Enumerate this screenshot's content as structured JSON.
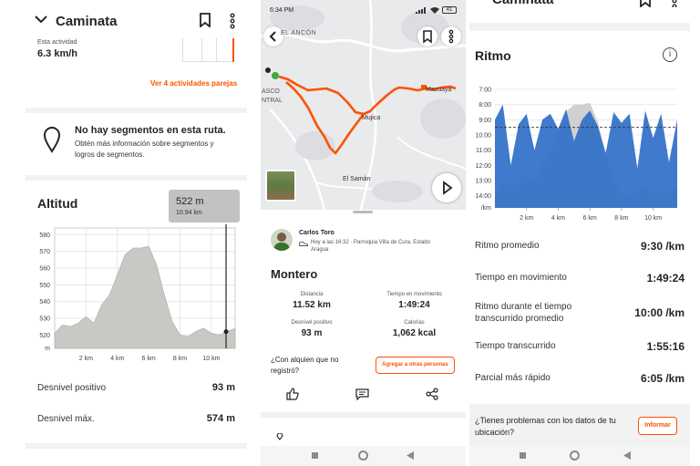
{
  "p1": {
    "title": "Caminata",
    "speed_label": "Esta actividad",
    "speed_value": "6.3 km/h",
    "similar_link": "Ver 4 actividades parejas",
    "segments_title": "No hay segmentos en esta ruta.",
    "segments_desc_1": "Obtén más información sobre segmentos y",
    "segments_desc_2": "logros de segmentos.",
    "altitude_title": "Altitud",
    "tooltip_value": "522 m",
    "tooltip_sub": "10.94 km",
    "y_ticks": [
      "580",
      "570",
      "560",
      "550",
      "540",
      "530",
      "520",
      "m"
    ],
    "x_ticks": [
      "2 km",
      "4 km",
      "6 km",
      "8 km",
      "10 km"
    ],
    "gain_label": "Desnivel positivo",
    "gain_value": "93 m",
    "max_label": "Desnivel máx.",
    "max_value": "574 m"
  },
  "p2": {
    "status_time": "6:34 PM",
    "battery": "41",
    "map_labels": {
      "ancon": "EL ANCÓN",
      "asco": "ASCO",
      "ntral": "NTRAL",
      "mujica": "Mujica",
      "macuaya": "Macuaya",
      "saman": "El Samán"
    },
    "athlete_name": "Carlos Toro",
    "athlete_meta_1": "Hoy a las 16:32 · Parroquia Villa de Cura, Estado",
    "athlete_meta_2": "Aragua",
    "activity_title": "Montero",
    "stats": [
      {
        "label": "Distancia",
        "value": "11.52 km"
      },
      {
        "label": "Tiempo en movimiento",
        "value": "1:49:24"
      },
      {
        "label": "Desnivel positivo",
        "value": "93 m"
      },
      {
        "label": "Calorías",
        "value": "1,062 kcal"
      }
    ],
    "companion_q_1": "¿Con alquien que no",
    "companion_q_2": "registró?",
    "add_button": "Agregar a otras personas"
  },
  "p3": {
    "title": "Caminata",
    "pace_title": "Ritmo",
    "y_ticks": [
      "7:00",
      "8:00",
      "9:00",
      "10:00",
      "11:00",
      "12:00",
      "13:00",
      "14:00",
      "/km"
    ],
    "x_ticks": [
      "2 km",
      "4 km",
      "6 km",
      "8 km",
      "10 km"
    ],
    "rows": [
      {
        "label": "Ritmo promedio",
        "value": "9:30 /km"
      },
      {
        "label": "Tiempo en movimiento",
        "value": "1:49:24"
      },
      {
        "label_1": "Ritmo durante el tiempo",
        "label_2": "transcurrido promedio",
        "value": "10:00 /km"
      },
      {
        "label": "Tiempo transcurrido",
        "value": "1:55:16"
      },
      {
        "label": "Parcial más rápido",
        "value": "6:05 /km"
      }
    ],
    "problem_q_1": "¿Tienes problemas con los datos de tu",
    "problem_q_2": "ubicación?",
    "report_button": "Informar"
  },
  "colors": {
    "accent": "#fc5200",
    "pace_blue": "#2f6fc8",
    "elev_gray": "#c8c8c4"
  },
  "chart_data": [
    {
      "type": "area",
      "title": "Altitud",
      "xlabel": "",
      "ylabel": "m",
      "xlim": [
        0,
        11.52
      ],
      "ylim": [
        512,
        584
      ],
      "x": [
        0,
        0.5,
        1,
        1.5,
        2,
        2.5,
        3,
        3.5,
        4,
        4.5,
        5,
        5.5,
        6,
        6.5,
        7,
        7.5,
        8,
        8.5,
        9,
        9.5,
        10,
        10.5,
        11,
        11.52
      ],
      "values": [
        521,
        526,
        525,
        527,
        531,
        527,
        538,
        544,
        556,
        568,
        572,
        572,
        573,
        562,
        544,
        528,
        520,
        519,
        522,
        524,
        521,
        520,
        522,
        524
      ],
      "annotation": {
        "x": 10.94,
        "y": 522
      }
    },
    {
      "type": "area",
      "title": "Ritmo",
      "xlabel": "",
      "ylabel": "/km",
      "xlim": [
        0,
        11.52
      ],
      "ylim": [
        14.8,
        6.4
      ],
      "y_reversed": true,
      "average_pace_min": 9.5,
      "x": [
        0,
        0.5,
        1,
        1.5,
        2,
        2.5,
        3,
        3.5,
        4,
        4.5,
        5,
        5.5,
        6,
        6.5,
        7,
        7.5,
        8,
        8.5,
        9,
        9.5,
        10,
        10.5,
        11,
        11.52
      ],
      "values": [
        9.0,
        8.0,
        12.0,
        9.3,
        8.6,
        11.0,
        9.0,
        8.6,
        9.6,
        8.3,
        10.4,
        9.0,
        8.4,
        9.4,
        11.2,
        8.5,
        9.2,
        8.6,
        12.2,
        8.4,
        10.2,
        8.6,
        11.8,
        9.0
      ],
      "elevation_overlay": "Altitud"
    }
  ]
}
